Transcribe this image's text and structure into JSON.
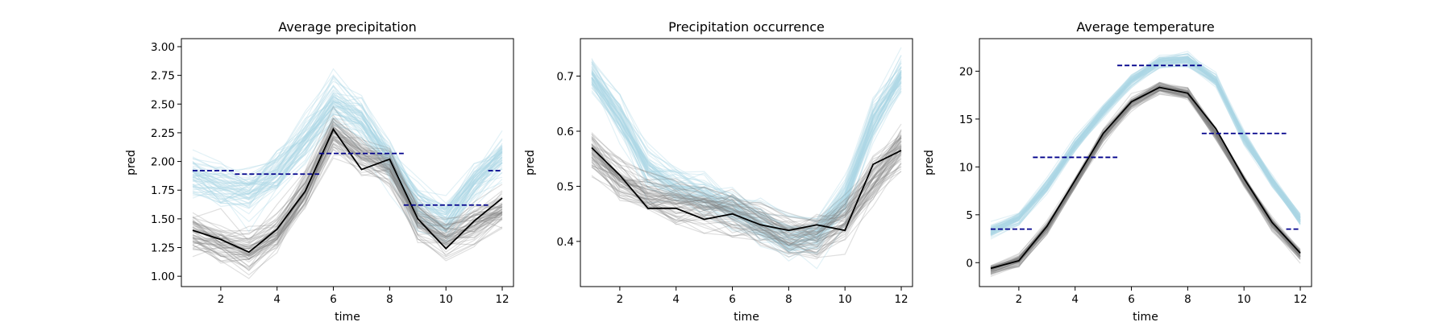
{
  "chart_data": [
    {
      "type": "line",
      "title": "Average precipitation",
      "xlabel": "time",
      "ylabel": "pred",
      "xlim": [
        0.6,
        12.4
      ],
      "ylim": [
        0.91,
        3.07
      ],
      "xticks": [
        2,
        4,
        6,
        8,
        10,
        12
      ],
      "yticks": [
        1.0,
        1.25,
        1.5,
        1.75,
        2.0,
        2.25,
        2.5,
        2.75,
        3.0
      ],
      "ytick_decimals": 2,
      "x": [
        1,
        2,
        3,
        4,
        5,
        6,
        7,
        8,
        9,
        10,
        11,
        12
      ],
      "blue_center": [
        1.87,
        1.8,
        1.75,
        1.9,
        2.2,
        2.52,
        2.38,
        2.0,
        1.62,
        1.5,
        1.8,
        2.05
      ],
      "blue_spread": 0.1,
      "gray_center": [
        1.36,
        1.27,
        1.2,
        1.36,
        1.72,
        2.25,
        2.05,
        1.95,
        1.48,
        1.32,
        1.45,
        1.58
      ],
      "gray_spread": 0.09,
      "observed": [
        1.4,
        1.32,
        1.21,
        1.41,
        1.74,
        2.28,
        1.93,
        2.02,
        1.5,
        1.24,
        1.48,
        1.68
      ],
      "seasonal_means": [
        {
          "x0": 1.0,
          "x1": 2.5,
          "y": 1.92
        },
        {
          "x0": 2.5,
          "x1": 5.5,
          "y": 1.89
        },
        {
          "x0": 5.5,
          "x1": 8.5,
          "y": 2.07
        },
        {
          "x0": 8.5,
          "x1": 11.5,
          "y": 1.62
        },
        {
          "x0": 11.5,
          "x1": 12.0,
          "y": 1.92
        }
      ]
    },
    {
      "type": "line",
      "title": "Precipitation occurrence",
      "xlabel": "time",
      "ylabel": "pred",
      "xlim": [
        0.6,
        12.4
      ],
      "ylim": [
        0.318,
        0.768
      ],
      "xticks": [
        2,
        4,
        6,
        8,
        10,
        12
      ],
      "yticks": [
        0.4,
        0.5,
        0.6,
        0.7
      ],
      "ytick_decimals": 1,
      "x": [
        1,
        2,
        3,
        4,
        5,
        6,
        7,
        8,
        9,
        10,
        11,
        12
      ],
      "blue_center": [
        0.7,
        0.62,
        0.53,
        0.5,
        0.48,
        0.46,
        0.43,
        0.4,
        0.41,
        0.48,
        0.62,
        0.7
      ],
      "blue_spread": 0.02,
      "gray_center": [
        0.56,
        0.51,
        0.48,
        0.47,
        0.46,
        0.45,
        0.43,
        0.41,
        0.41,
        0.44,
        0.51,
        0.57
      ],
      "gray_spread": 0.02,
      "observed": [
        0.57,
        0.52,
        0.46,
        0.46,
        0.44,
        0.45,
        0.43,
        0.42,
        0.43,
        0.42,
        0.54,
        0.565
      ],
      "seasonal_means": []
    },
    {
      "type": "line",
      "title": "Average temperature",
      "xlabel": "time",
      "ylabel": "pred",
      "xlim": [
        0.6,
        12.4
      ],
      "ylim": [
        -2.5,
        23.4
      ],
      "xticks": [
        2,
        4,
        6,
        8,
        10,
        12
      ],
      "yticks": [
        0,
        5,
        10,
        15,
        20
      ],
      "ytick_decimals": 0,
      "x": [
        1,
        2,
        3,
        4,
        5,
        6,
        7,
        8,
        9,
        10,
        11,
        12
      ],
      "blue_center": [
        3.2,
        4.6,
        8.0,
        12.3,
        15.8,
        19.0,
        21.0,
        21.2,
        19.0,
        13.0,
        8.5,
        4.5
      ],
      "blue_spread": 0.35,
      "gray_center": [
        -0.8,
        0.2,
        3.6,
        8.3,
        13.2,
        16.6,
        18.2,
        17.6,
        13.5,
        8.5,
        4.0,
        0.8
      ],
      "gray_spread": 0.3,
      "observed": [
        -0.6,
        0.2,
        3.8,
        8.6,
        13.5,
        16.8,
        18.3,
        17.7,
        14.0,
        8.8,
        4.2,
        1.0
      ],
      "seasonal_means": [
        {
          "x0": 1.0,
          "x1": 2.5,
          "y": 3.5
        },
        {
          "x0": 2.5,
          "x1": 5.5,
          "y": 11.0
        },
        {
          "x0": 5.5,
          "x1": 8.5,
          "y": 20.6
        },
        {
          "x0": 8.5,
          "x1": 11.5,
          "y": 13.5
        },
        {
          "x0": 11.5,
          "x1": 12.0,
          "y": 3.5
        }
      ]
    }
  ],
  "colors": {
    "ensemble_model": "#add8e6",
    "ensemble_reference": "#808080",
    "observed": "#000000",
    "seasonal_mean": "#00008b"
  }
}
